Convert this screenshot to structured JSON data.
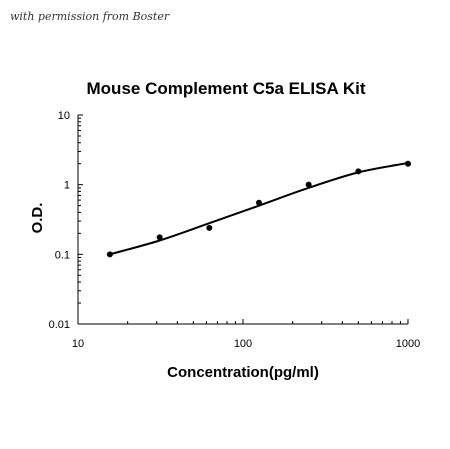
{
  "watermark": "with permission from Boster",
  "chart_data": {
    "type": "scatter",
    "title": "Mouse Complement C5a ELISA Kit",
    "xlabel": "Concentration(pg/ml)",
    "ylabel": "O.D.",
    "xscale": "log",
    "yscale": "log",
    "xlim": [
      10,
      1000
    ],
    "ylim": [
      0.01,
      10
    ],
    "xticks": [
      "10",
      "100",
      "1000"
    ],
    "yticks": [
      "10",
      "1",
      "0.1",
      "0.01"
    ],
    "grid": false,
    "legend": "none",
    "series": [
      {
        "points": [
          {
            "x": 15.6,
            "y": 0.1
          },
          {
            "x": 31.25,
            "y": 0.175
          },
          {
            "x": 62.5,
            "y": 0.24
          },
          {
            "x": 125,
            "y": 0.55
          },
          {
            "x": 250,
            "y": 1.0
          },
          {
            "x": 500,
            "y": 1.55
          },
          {
            "x": 1000,
            "y": 2.0
          }
        ],
        "fit": {
          "type": "curve",
          "points": [
            {
              "x": 15.6,
              "y": 0.1
            },
            {
              "x": 31.25,
              "y": 0.158
            },
            {
              "x": 62.5,
              "y": 0.28
            },
            {
              "x": 125,
              "y": 0.5
            },
            {
              "x": 250,
              "y": 0.9
            },
            {
              "x": 500,
              "y": 1.5
            },
            {
              "x": 1000,
              "y": 2.05
            }
          ]
        }
      }
    ]
  }
}
